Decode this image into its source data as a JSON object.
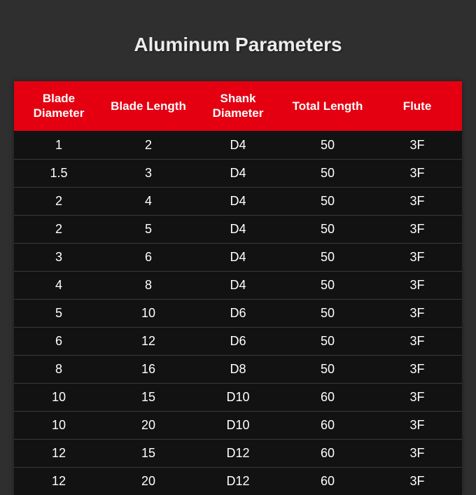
{
  "title": "Aluminum Parameters",
  "table": {
    "columns": [
      "Blade Diameter",
      "Blade Length",
      "Shank Diameter",
      "Total Length",
      "Flute"
    ],
    "rows": [
      [
        "1",
        "2",
        "D4",
        "50",
        "3F"
      ],
      [
        "1.5",
        "3",
        "D4",
        "50",
        "3F"
      ],
      [
        "2",
        "4",
        "D4",
        "50",
        "3F"
      ],
      [
        "2",
        "5",
        "D4",
        "50",
        "3F"
      ],
      [
        "3",
        "6",
        "D4",
        "50",
        "3F"
      ],
      [
        "4",
        "8",
        "D4",
        "50",
        "3F"
      ],
      [
        "5",
        "10",
        "D6",
        "50",
        "3F"
      ],
      [
        "6",
        "12",
        "D6",
        "50",
        "3F"
      ],
      [
        "8",
        "16",
        "D8",
        "50",
        "3F"
      ],
      [
        "10",
        "15",
        "D10",
        "60",
        "3F"
      ],
      [
        "10",
        "20",
        "D10",
        "60",
        "3F"
      ],
      [
        "12",
        "15",
        "D12",
        "60",
        "3F"
      ],
      [
        "12",
        "20",
        "D12",
        "60",
        "3F"
      ]
    ],
    "style": {
      "type": "table",
      "header_bg": "#e40011",
      "header_text_color": "#ffffff",
      "row_bg": "#121212",
      "row_text_color": "#ffffff",
      "row_border_color": "#3a3a3a",
      "page_bg": "#2f2f2f",
      "title_color": "#ececec",
      "title_fontsize_pt": 21,
      "header_fontsize_pt": 13,
      "cell_fontsize_pt": 14,
      "column_align": [
        "center",
        "center",
        "center",
        "center",
        "center"
      ]
    }
  }
}
